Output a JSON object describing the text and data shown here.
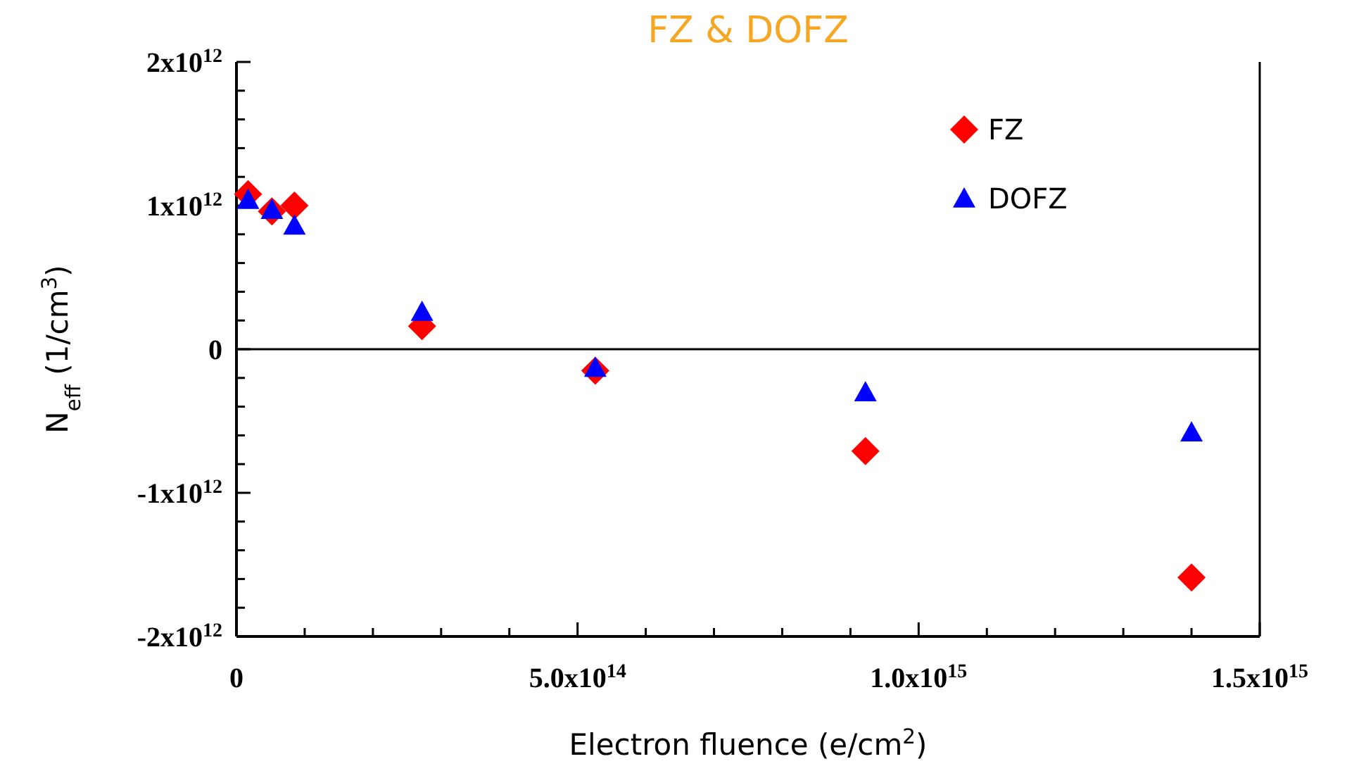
{
  "chart_data": {
    "type": "scatter",
    "title": "FZ & DOFZ",
    "xlabel": "Electron fluence (e/cm$^{2}$)",
    "ylabel": "N$_{eff}$ (1/cm$^{3}$)",
    "xlim": [
      0,
      1500000000000000.0
    ],
    "xticks": [
      {
        "value": 0,
        "label": "0"
      },
      {
        "value": 100000000000000.0,
        "label": null
      },
      {
        "value": 200000000000000.0,
        "label": null
      },
      {
        "value": 300000000000000.0,
        "label": null
      },
      {
        "value": 400000000000000.0,
        "label": null
      },
      {
        "value": 500000000000000.0,
        "label": "5.0x10$^{14}$"
      },
      {
        "value": 600000000000000.0,
        "label": null
      },
      {
        "value": 700000000000000.0,
        "label": null
      },
      {
        "value": 800000000000000.0,
        "label": null
      },
      {
        "value": 900000000000000.0,
        "label": null
      },
      {
        "value": 1000000000000000.0,
        "label": "1.0x10$^{15}$"
      },
      {
        "value": 1100000000000000.0,
        "label": null
      },
      {
        "value": 1200000000000000.0,
        "label": null
      },
      {
        "value": 1300000000000000.0,
        "label": null
      },
      {
        "value": 1400000000000000.0,
        "label": null
      },
      {
        "value": 1500000000000000.0,
        "label": "1.5x10$^{15}$"
      }
    ],
    "ylim": [
      -2000000000000.0,
      2000000000000.0
    ],
    "yticks": [
      {
        "value": -2000000000000.0,
        "label": "-2x10$^{12}$"
      },
      {
        "value": -1800000000000.0,
        "label": null
      },
      {
        "value": -1600000000000.0,
        "label": null
      },
      {
        "value": -1400000000000.0,
        "label": null
      },
      {
        "value": -1200000000000.0,
        "label": null
      },
      {
        "value": -1000000000000.0,
        "label": "-1x10$^{12}$"
      },
      {
        "value": -800000000000.0,
        "label": null
      },
      {
        "value": -600000000000.0,
        "label": null
      },
      {
        "value": -400000000000.0,
        "label": null
      },
      {
        "value": -200000000000.0,
        "label": null
      },
      {
        "value": 0,
        "label": "0"
      },
      {
        "value": 200000000000.0,
        "label": null
      },
      {
        "value": 400000000000.0,
        "label": null
      },
      {
        "value": 600000000000.0,
        "label": null
      },
      {
        "value": 800000000000.0,
        "label": null
      },
      {
        "value": 1000000000000.0,
        "label": "1x10$^{12}$"
      },
      {
        "value": 1200000000000.0,
        "label": null
      },
      {
        "value": 1400000000000.0,
        "label": null
      },
      {
        "value": 1600000000000.0,
        "label": null
      },
      {
        "value": 1800000000000.0,
        "label": null
      },
      {
        "value": 2000000000000.0,
        "label": "2x10$^{12}$"
      }
    ],
    "ref_lines": [
      {
        "axis": "y",
        "value": 0,
        "color": "#000000"
      }
    ],
    "legend": "top right",
    "grid": false,
    "series": [
      {
        "name": "FZ",
        "color": "#ff0000",
        "marker": "diamond",
        "x": [
          17000000000000.0,
          52000000000000.0,
          85000000000000.0,
          272000000000000.0,
          526000000000000.0,
          922000000000000.0,
          1400000000000000.0
        ],
        "values": [
          1080000000000.0,
          960000000000.0,
          1000000000000.0,
          160000000000.0,
          -150000000000.0,
          -710000000000.0,
          -1590000000000.0
        ]
      },
      {
        "name": "DOFZ",
        "color": "#0000ff",
        "marker": "triangle",
        "x": [
          17000000000000.0,
          52000000000000.0,
          85000000000000.0,
          272000000000000.0,
          526000000000000.0,
          922000000000000.0,
          1400000000000000.0
        ],
        "values": [
          1040000000000.0,
          970000000000.0,
          860000000000.0,
          260000000000.0,
          -130000000000.0,
          -300000000000.0,
          -580000000000.0
        ]
      }
    ]
  }
}
